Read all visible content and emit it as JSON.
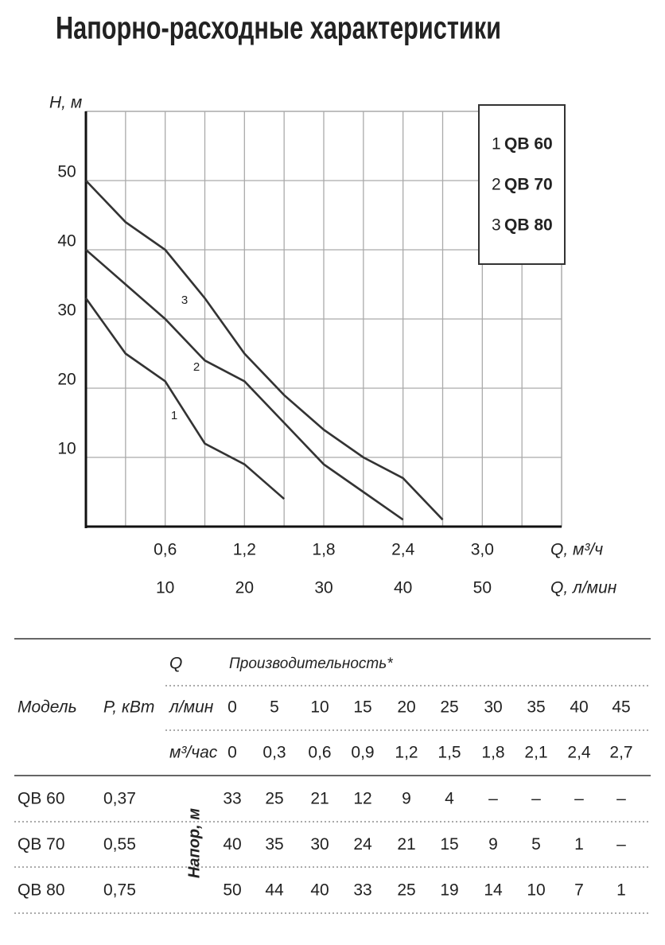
{
  "chart_data": {
    "type": "line",
    "title": "Напорно-расходные характеристики",
    "y_label": "H, м",
    "x_label": "Q, м³/ч",
    "x2_label": "Q, л/мин",
    "xlim": [
      0,
      3.6
    ],
    "ylim": [
      0,
      60
    ],
    "x2lim": [
      0,
      60
    ],
    "xticks": [
      {
        "value": 0.6,
        "label": "0,6"
      },
      {
        "value": 1.2,
        "label": "1,2"
      },
      {
        "value": 1.8,
        "label": "1,8"
      },
      {
        "value": 2.4,
        "label": "2,4"
      },
      {
        "value": 3.0,
        "label": "3,0"
      }
    ],
    "x2ticks": [
      10,
      20,
      30,
      40,
      50
    ],
    "xgrid": [
      0.3,
      0.6,
      0.9,
      1.2,
      1.5,
      1.8,
      2.1,
      2.4,
      2.7,
      3.0,
      3.3
    ],
    "yticks": [
      10,
      20,
      30,
      40,
      50
    ],
    "grid": true,
    "series": [
      {
        "name": "QB 60",
        "label": "1",
        "color": "#333333",
        "x": [
          0,
          0.3,
          0.6,
          0.9,
          1.2,
          1.5
        ],
        "values": [
          33,
          25,
          21,
          12,
          9,
          4
        ]
      },
      {
        "name": "QB 70",
        "label": "2",
        "color": "#333333",
        "x": [
          0,
          0.3,
          0.6,
          0.9,
          1.2,
          1.5,
          1.8,
          2.1,
          2.4
        ],
        "values": [
          40,
          35,
          30,
          24,
          21,
          15,
          9,
          5,
          1
        ]
      },
      {
        "name": "QB 80",
        "label": "3",
        "color": "#333333",
        "x": [
          0,
          0.3,
          0.6,
          0.9,
          1.2,
          1.5,
          1.8,
          2.1,
          2.4,
          2.7
        ],
        "values": [
          50,
          44,
          40,
          33,
          25,
          19,
          14,
          10,
          7,
          1
        ]
      }
    ]
  },
  "table": {
    "model": "Модель",
    "power": "P, кВт",
    "q": "Q",
    "performance": "Производительность*",
    "lmin_label": "л/мин",
    "m3h_label": "м³/час",
    "head_label": "Напор, м",
    "lmin": [
      "0",
      "5",
      "10",
      "15",
      "20",
      "25",
      "30",
      "35",
      "40",
      "45"
    ],
    "m3h": [
      "0",
      "0,3",
      "0,6",
      "0,9",
      "1,2",
      "1,5",
      "1,8",
      "2,1",
      "2,4",
      "2,7"
    ],
    "rows": [
      {
        "model": "QB 60",
        "power": "0,37",
        "values": [
          "33",
          "25",
          "21",
          "12",
          "9",
          "4",
          "–",
          "–",
          "–",
          "–"
        ]
      },
      {
        "model": "QB 70",
        "power": "0,55",
        "values": [
          "40",
          "35",
          "30",
          "24",
          "21",
          "15",
          "9",
          "5",
          "1",
          "–"
        ]
      },
      {
        "model": "QB 80",
        "power": "0,75",
        "values": [
          "50",
          "44",
          "40",
          "33",
          "25",
          "19",
          "14",
          "10",
          "7",
          "1"
        ]
      }
    ]
  }
}
